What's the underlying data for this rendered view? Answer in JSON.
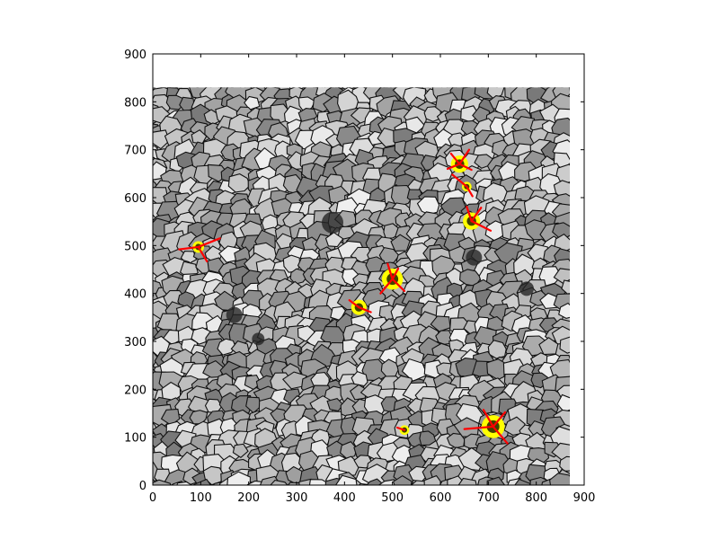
{
  "chart_data": {
    "type": "scatter",
    "title": "",
    "xlabel": "",
    "ylabel": "",
    "xlim": [
      0,
      900
    ],
    "ylim": [
      0,
      900
    ],
    "x_ticks": [
      0,
      100,
      200,
      300,
      400,
      500,
      600,
      700,
      800,
      900
    ],
    "y_ticks": [
      0,
      100,
      200,
      300,
      400,
      500,
      600,
      700,
      800,
      900
    ],
    "grid": false,
    "legend": "none",
    "background_image": {
      "description": "grayscale cellular (granulation-like) texture with dark polygon boundaries",
      "extent": {
        "x": [
          0,
          870
        ],
        "y": [
          0,
          830
        ]
      }
    },
    "colors": {
      "marker_fill": "#ffff00",
      "marker_center": "#000000",
      "vector": "#ff0000",
      "cell_edge": "#111111",
      "axes": "#000000"
    },
    "detections": [
      {
        "x": 95,
        "y": 497,
        "r": 12,
        "vectors": [
          [
            -40,
            -5
          ],
          [
            45,
            18
          ],
          [
            18,
            -30
          ]
        ]
      },
      {
        "x": 640,
        "y": 670,
        "r": 18,
        "vectors": [
          [
            -18,
            22
          ],
          [
            20,
            30
          ],
          [
            -25,
            -10
          ],
          [
            25,
            -12
          ]
        ]
      },
      {
        "x": 655,
        "y": 623,
        "r": 10,
        "vectors": [
          [
            -30,
            25
          ],
          [
            12,
            -20
          ]
        ]
      },
      {
        "x": 665,
        "y": 551,
        "r": 18,
        "vectors": [
          [
            40,
            -20
          ],
          [
            -10,
            30
          ],
          [
            20,
            28
          ]
        ]
      },
      {
        "x": 500,
        "y": 430,
        "r": 22,
        "vectors": [
          [
            -25,
            -30
          ],
          [
            25,
            -25
          ],
          [
            -10,
            32
          ],
          [
            12,
            22
          ]
        ]
      },
      {
        "x": 430,
        "y": 371,
        "r": 16,
        "vectors": [
          [
            -20,
            15
          ],
          [
            25,
            -10
          ]
        ]
      },
      {
        "x": 525,
        "y": 115,
        "r": 10,
        "vectors": [
          [
            -15,
            5
          ]
        ]
      },
      {
        "x": 710,
        "y": 122,
        "r": 24,
        "vectors": [
          [
            -60,
            -5
          ],
          [
            -20,
            35
          ],
          [
            30,
            -35
          ],
          [
            25,
            30
          ]
        ]
      }
    ]
  }
}
